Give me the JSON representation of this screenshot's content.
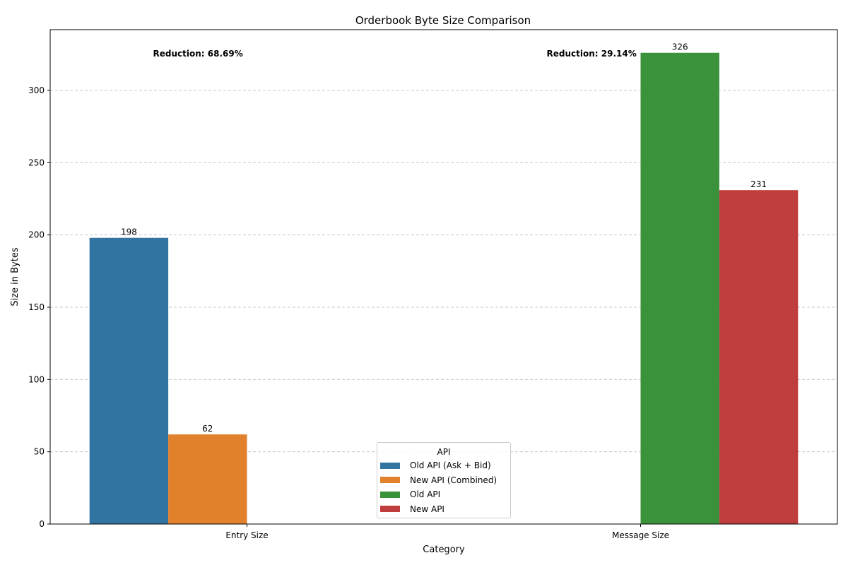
{
  "chart_data": {
    "type": "bar",
    "title": "Orderbook Byte Size Comparison",
    "xlabel": "Category",
    "ylabel": "Size in Bytes",
    "categories": [
      "Entry Size",
      "Message Size"
    ],
    "ylim": [
      0,
      342
    ],
    "yticks": [
      0,
      50,
      100,
      150,
      200,
      250,
      300
    ],
    "grid": "y-dashed",
    "legend_title": "API",
    "legend_position": "bottom-center",
    "series": [
      {
        "name": "Old API (Ask + Bid)",
        "color": "#3274a1",
        "values": [
          198,
          null
        ]
      },
      {
        "name": "New API (Combined)",
        "color": "#e1812c",
        "values": [
          62,
          null
        ]
      },
      {
        "name": "Old API",
        "color": "#3a923a",
        "values": [
          null,
          326
        ]
      },
      {
        "name": "New API",
        "color": "#c03d3e",
        "values": [
          null,
          231
        ]
      }
    ],
    "annotations": [
      {
        "text": "Reduction: 68.69%",
        "category": "Entry Size"
      },
      {
        "text": "Reduction: 29.14%",
        "category": "Message Size"
      }
    ]
  }
}
